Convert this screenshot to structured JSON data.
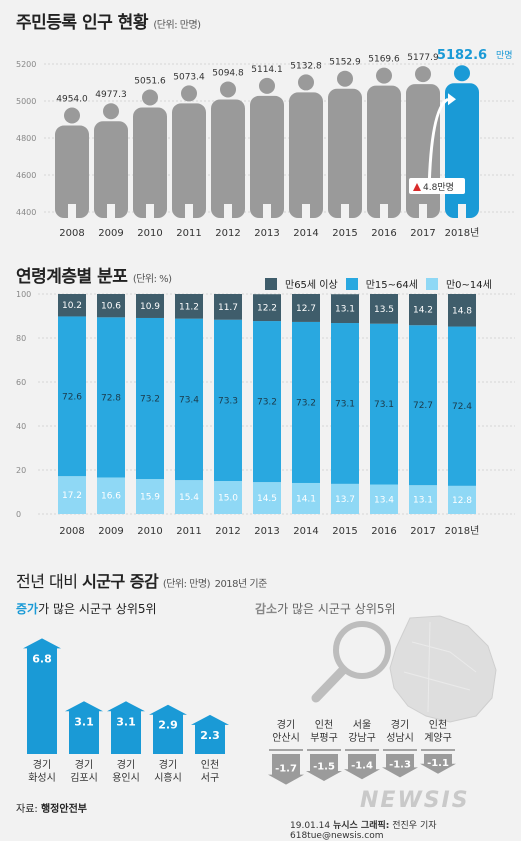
{
  "section1": {
    "title": "주민등록 인구 현황",
    "unit": "(단위: 만명)",
    "highlight_suffix": "만명",
    "callout": "4.8만명"
  },
  "section2": {
    "title": "연령계층별 분포",
    "unit": "(단위: %)",
    "legend": [
      "만65세 이상",
      "만15~64세",
      "만0~14세"
    ]
  },
  "section3": {
    "title_prefix": "전년 대비",
    "title_bold": "시군구 증감",
    "unit": "(단위: 만명)",
    "basis": "2018년 기준",
    "inc_title_hl": "증가",
    "inc_title_rest": "가 많은 시군구 상위5위",
    "dec_title_hl": "감소",
    "dec_title_rest": "가 많은 시군구 상위5위"
  },
  "source": {
    "label": "자료:",
    "name": "행정안전부"
  },
  "footer": {
    "date": "19.01.14",
    "agency": "뉴시스 그래픽:",
    "reporter": "전진우 기자 618tue@newsis.com"
  },
  "watermark": "NEWSIS",
  "colors": {
    "gray_person": "#9a9a9a",
    "blue": "#1a9ad6",
    "dark": "#3f5d6b",
    "mid": "#29a8e0",
    "light": "#8fd8f5"
  },
  "chart_data": [
    {
      "type": "bar",
      "title": "주민등록 인구 현황",
      "unit": "만명",
      "categories": [
        "2008",
        "2009",
        "2010",
        "2011",
        "2012",
        "2013",
        "2014",
        "2015",
        "2016",
        "2017",
        "2018년"
      ],
      "values": [
        4954.0,
        4977.3,
        5051.6,
        5073.4,
        5094.8,
        5114.1,
        5132.8,
        5152.9,
        5169.6,
        5177.9,
        5182.6
      ],
      "value_labels": [
        "4954.0",
        "4977.3",
        "5051.6",
        "5073.4",
        "5094.8",
        "5114.1",
        "5132.8",
        "5152.9",
        "5169.6",
        "5177.9",
        "5182.6"
      ],
      "y_ticks": [
        "5200",
        "5000",
        "4800",
        "4600",
        "4400"
      ],
      "ylim": [
        4400,
        5200
      ]
    },
    {
      "type": "bar",
      "stacked": true,
      "title": "연령계층별 분포",
      "unit": "%",
      "categories": [
        "2008",
        "2009",
        "2010",
        "2011",
        "2012",
        "2013",
        "2014",
        "2015",
        "2016",
        "2017",
        "2018년"
      ],
      "y_ticks": [
        "100",
        "80",
        "60",
        "40",
        "20",
        "0"
      ],
      "ylim": [
        0,
        100
      ],
      "series": [
        {
          "name": "만0~14세",
          "values": [
            17.2,
            16.6,
            15.9,
            15.4,
            15.0,
            14.5,
            14.1,
            13.7,
            13.4,
            13.1,
            12.8
          ],
          "labels": [
            "17.2",
            "16.6",
            "15.9",
            "15.4",
            "15.0",
            "14.5",
            "14.1",
            "13.7",
            "13.4",
            "13.1",
            "12.8"
          ]
        },
        {
          "name": "만15~64세",
          "values": [
            72.6,
            72.8,
            73.2,
            73.4,
            73.3,
            73.2,
            73.2,
            73.1,
            73.1,
            72.7,
            72.4
          ],
          "labels": [
            "72.6",
            "72.8",
            "73.2",
            "73.4",
            "73.3",
            "73.2",
            "73.2",
            "73.1",
            "73.1",
            "72.7",
            "72.4"
          ]
        },
        {
          "name": "만65세 이상",
          "values": [
            10.2,
            10.6,
            10.9,
            11.2,
            11.7,
            12.2,
            12.7,
            13.1,
            13.5,
            14.2,
            14.8
          ],
          "labels": [
            "10.2",
            "10.6",
            "10.9",
            "11.2",
            "11.7",
            "12.2",
            "12.7",
            "13.1",
            "13.5",
            "14.2",
            "14.8"
          ]
        }
      ]
    },
    {
      "type": "bar",
      "title": "증가가 많은 시군구 상위5위",
      "unit": "만명",
      "categories": [
        [
          "경기",
          "화성시"
        ],
        [
          "경기",
          "김포시"
        ],
        [
          "경기",
          "용인시"
        ],
        [
          "경기",
          "시흥시"
        ],
        [
          "인천",
          "서구"
        ]
      ],
      "values": [
        6.8,
        3.1,
        3.1,
        2.9,
        2.3
      ],
      "value_labels": [
        "6.8",
        "3.1",
        "3.1",
        "2.9",
        "2.3"
      ]
    },
    {
      "type": "bar",
      "title": "감소가 많은 시군구 상위5위",
      "unit": "만명",
      "categories": [
        [
          "경기",
          "안산시"
        ],
        [
          "인천",
          "부평구"
        ],
        [
          "서울",
          "강남구"
        ],
        [
          "경기",
          "성남시"
        ],
        [
          "인천",
          "계양구"
        ]
      ],
      "values": [
        -1.7,
        -1.5,
        -1.4,
        -1.3,
        -1.1
      ],
      "value_labels": [
        "-1.7",
        "-1.5",
        "-1.4",
        "-1.3",
        "-1.1"
      ]
    }
  ]
}
